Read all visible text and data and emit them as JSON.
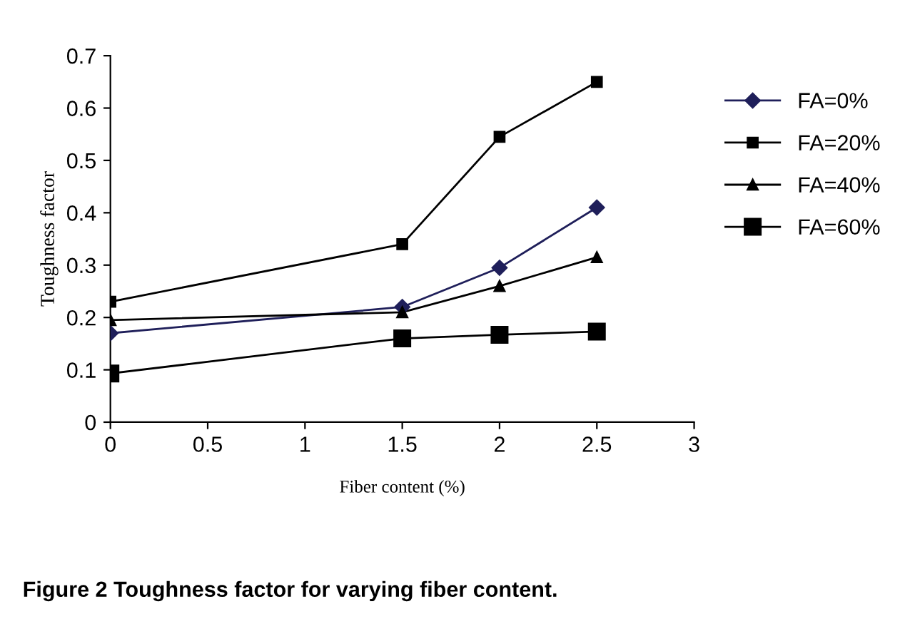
{
  "chart_data": {
    "type": "line",
    "xlabel": "Fiber content (%)",
    "ylabel": "Toughness factor",
    "annotations": [
      "Figure 2 Toughness factor for varying fiber content."
    ],
    "x": [
      0,
      1.5,
      2,
      2.5
    ],
    "xlim": [
      0,
      3
    ],
    "xticks": [
      0,
      0.5,
      1,
      1.5,
      2,
      2.5,
      3
    ],
    "ylim": [
      0,
      0.7
    ],
    "yticks": [
      0,
      0.1,
      0.2,
      0.3,
      0.4,
      0.5,
      0.6,
      0.7
    ],
    "grid": false,
    "legend": "right",
    "line_style": "solid",
    "series": [
      {
        "name": "FA=0%",
        "color": "#1f1f5a",
        "marker": "diamond",
        "values": [
          0.17,
          0.22,
          0.295,
          0.41
        ]
      },
      {
        "name": "FA=20%",
        "color": "#000000",
        "marker": "square",
        "values": [
          0.23,
          0.34,
          0.545,
          0.65
        ]
      },
      {
        "name": "FA=40%",
        "color": "#000000",
        "marker": "triangle",
        "values": [
          0.195,
          0.21,
          0.26,
          0.315
        ]
      },
      {
        "name": "FA=60%",
        "color": "#000000",
        "marker": "square",
        "values": [
          0.093,
          0.16,
          0.167,
          0.173
        ]
      }
    ]
  }
}
